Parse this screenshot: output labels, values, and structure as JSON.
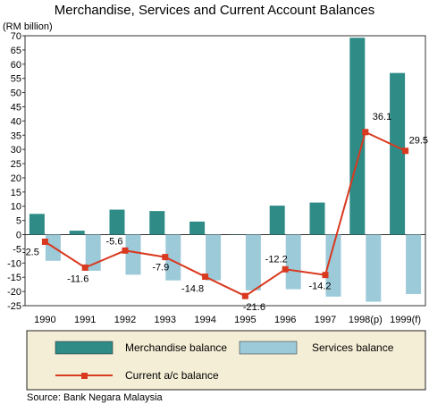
{
  "chart_data": {
    "type": "bar",
    "title": "Merchandise, Services and Current Account Balances",
    "ylabel": "(RM billion)",
    "xlabel": "",
    "categories": [
      "1990",
      "1991",
      "1992",
      "1993",
      "1994",
      "1995",
      "1996",
      "1997",
      "1998(p)",
      "1999(f)"
    ],
    "ylim": [
      -25,
      70
    ],
    "yticks": [
      "70",
      "65",
      "60",
      "55",
      "50",
      "45",
      "40",
      "35",
      "30",
      "25",
      "20",
      "15",
      "10",
      "5",
      "0",
      "-5",
      "-10",
      "-15",
      "-20",
      "-25"
    ],
    "grid": false,
    "legend_position": "bottom",
    "series": [
      {
        "name": "Merchandise balance",
        "type": "bar",
        "color": "#2e8b86",
        "values": [
          7.3,
          1.4,
          8.8,
          8.3,
          4.6,
          0.1,
          10.2,
          11.3,
          69.3,
          56.9
        ]
      },
      {
        "name": "Services balance",
        "type": "bar",
        "color": "#9ccad9",
        "values": [
          -9.2,
          -12.7,
          -14.1,
          -16.1,
          -16.1,
          -19.6,
          -19.2,
          -21.8,
          -23.6,
          -20.9
        ]
      },
      {
        "name": "Current a/c balance",
        "type": "line",
        "color": "#d9391f",
        "values": [
          -2.5,
          -11.6,
          -5.6,
          -7.9,
          -14.8,
          -21.6,
          -12.2,
          -14.2,
          36.1,
          29.5
        ],
        "labels": [
          "-2.5",
          "-11.6",
          "-5.6",
          "-7.9",
          "-14.8",
          "-21.6",
          "-12.2",
          "-14.2",
          "36.1",
          "29.5"
        ]
      }
    ],
    "source": "Source: Bank Negara Malaysia"
  }
}
